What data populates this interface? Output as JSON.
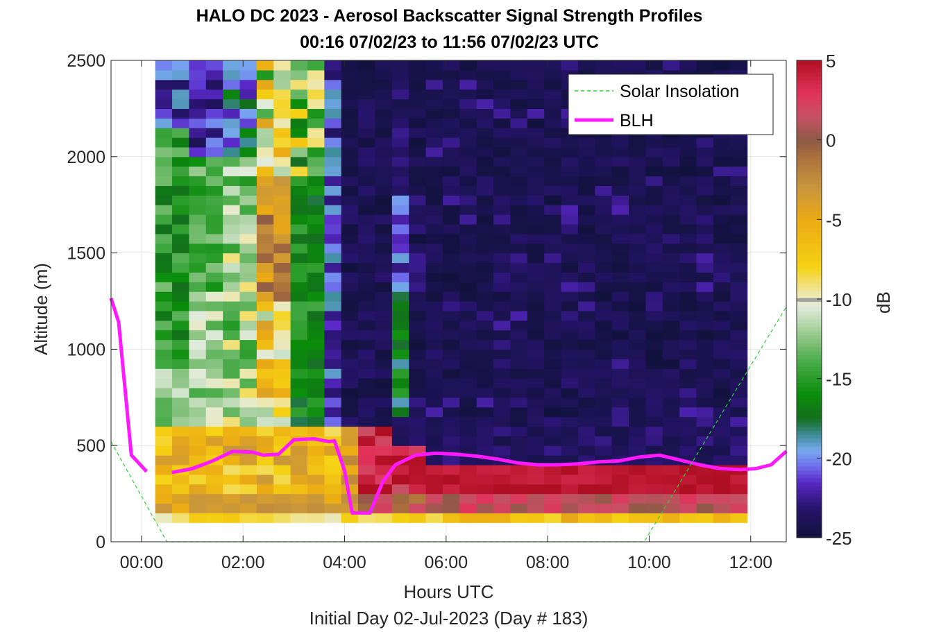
{
  "title_line1": "HALO DC 2023 - Aerosol Backscatter Signal Strength Profiles",
  "title_line2": "00:16 07/02/23 to 11:56 07/02/23  UTC",
  "xlabel": "Hours UTC",
  "subtitle": "Initial Day 02-Jul-2023 (Day # 183)",
  "ylabel": "Altitude (m)",
  "colorbar_label": "dB",
  "legend": {
    "solar": "Solar Insolation",
    "blh": "BLH"
  },
  "colors": {
    "blh": "#ff19ff",
    "solar": "#29d629",
    "legend_position": "top-right"
  },
  "chart_data": {
    "type": "heatmap",
    "xlim_hours": [
      -0.6,
      12.7
    ],
    "ylim_m": [
      0,
      2500
    ],
    "xticks": [
      "00:00",
      "02:00",
      "04:00",
      "06:00",
      "08:00",
      "10:00",
      "12:00"
    ],
    "xtick_hours": [
      0,
      2,
      4,
      6,
      8,
      10,
      12
    ],
    "yticks": [
      0,
      500,
      1000,
      1500,
      2000,
      2500
    ],
    "colorbar_ticks": [
      5,
      0,
      -5,
      -10,
      -15,
      -20,
      -25
    ],
    "colorbar_range_db": [
      -25,
      5
    ],
    "grid": true,
    "heatmap_time_range_hours": [
      0.27,
      11.93
    ],
    "heatmap_alt_range_m": [
      100,
      2500
    ],
    "series": [
      {
        "name": "BLH",
        "x": [
          -0.6,
          -0.45,
          -0.2,
          0.1,
          0.27,
          0.6,
          1.0,
          1.4,
          1.8,
          2.2,
          2.4,
          2.7,
          3.0,
          3.4,
          3.6,
          3.7,
          3.8,
          4.0,
          4.15,
          4.3,
          4.5,
          4.75,
          5.0,
          5.4,
          5.8,
          6.2,
          6.6,
          7.0,
          7.4,
          7.8,
          8.2,
          8.6,
          9.0,
          9.4,
          9.8,
          10.2,
          10.6,
          11.0,
          11.4,
          11.8,
          12.1,
          12.4,
          12.7
        ],
        "y": [
          1265,
          1140,
          450,
          365,
          null,
          360,
          380,
          420,
          470,
          465,
          450,
          455,
          530,
          535,
          525,
          520,
          525,
          370,
          150,
          150,
          150,
          310,
          400,
          450,
          460,
          455,
          445,
          430,
          410,
          400,
          400,
          405,
          415,
          420,
          440,
          450,
          425,
          400,
          380,
          375,
          380,
          400,
          470
        ]
      },
      {
        "name": "Solar Insolation",
        "x": [
          -0.6,
          0.5,
          9.9,
          12.7
        ],
        "y": [
          520,
          0,
          0,
          1220
        ]
      }
    ]
  }
}
